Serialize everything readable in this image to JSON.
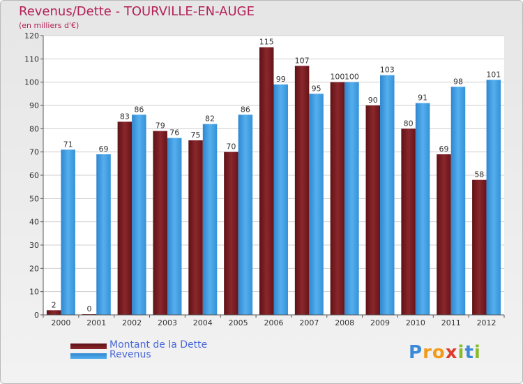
{
  "header": {
    "title": "Revenus/Dette - TOURVILLE-EN-AUGE",
    "subtitle": "(en milliers d'€)"
  },
  "logo": {
    "letters": [
      "P",
      "r",
      "o",
      "x",
      "i",
      "t",
      "i"
    ],
    "colors": [
      "#3b8ad9",
      "#f29a1a",
      "#f29a1a",
      "#e03a2a",
      "#8bbb2a",
      "#3b8ad9",
      "#8bbb2a"
    ]
  },
  "chart_data": {
    "type": "bar",
    "categories": [
      "2000",
      "2001",
      "2002",
      "2003",
      "2004",
      "2005",
      "2006",
      "2007",
      "2008",
      "2009",
      "2010",
      "2011",
      "2012"
    ],
    "series": [
      {
        "name": "Montant de la Dette",
        "values": [
          2,
          0,
          83,
          79,
          75,
          70,
          115,
          107,
          100,
          90,
          80,
          69,
          58
        ],
        "color": "#7a1f24"
      },
      {
        "name": "Revenus",
        "values": [
          71,
          69,
          86,
          76,
          82,
          86,
          99,
          95,
          100,
          103,
          91,
          98,
          101
        ],
        "color": "#3e9be0"
      }
    ],
    "ylim": [
      0,
      120
    ],
    "yticks": [
      0,
      10,
      20,
      30,
      40,
      50,
      60,
      70,
      80,
      90,
      100,
      110,
      120
    ],
    "grid": true,
    "legend_position": "bottom-left"
  }
}
